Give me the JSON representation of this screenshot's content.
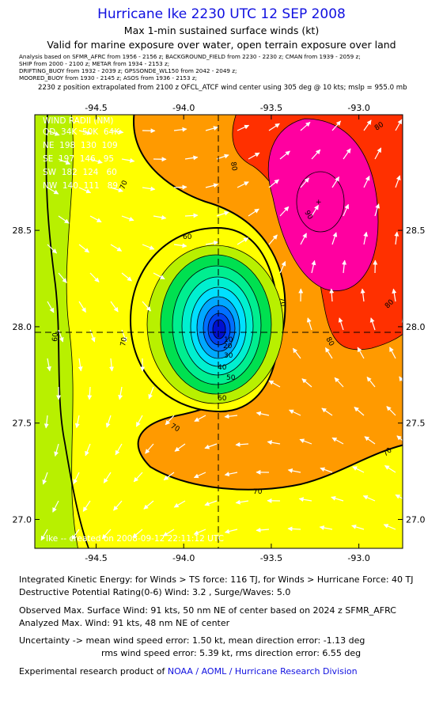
{
  "header": {
    "title": "Hurricane Ike 2230 UTC 12 SEP 2008",
    "subtitle1": "Max 1-min sustained surface winds (kt)",
    "subtitle2": "Valid for marine exposure over water, open terrain exposure over land",
    "meta_lines": [
      "Analysis based on  SFMR_AFRC from 1956 - 2156 z;  BACKGROUND_FIELD from 2230 - 2230 z;  CMAN from 1939 - 2059 z;",
      "SHIP from 2000 - 2100 z;   METAR from 1934 - 2153 z;",
      "DRIFTING_BUOY from 1932 - 2039 z;   GPSSONDE_WL150 from 2042 - 2049 z;",
      "MOORED_BUOY from 1930 - 2145 z;  ASOS from 1936 - 2153 z;"
    ],
    "position_note": "2230 z position extrapolated from 2100 z OFCL_ATCF wind center using 305 deg @ 10 kts; mslp = 955.0 mb"
  },
  "map": {
    "lon_range": [
      -94.85,
      -92.75
    ],
    "lat_range": [
      26.85,
      29.1
    ],
    "lon_ticks": [
      "-94.5",
      "-94.0",
      "-93.5",
      "-93.0"
    ],
    "lat_ticks": [
      "28.5",
      "28.0",
      "27.5",
      "27.0"
    ],
    "center": {
      "lon": -93.72,
      "lat": 27.85
    },
    "legend": {
      "title": "WIND RADII (NM)",
      "header": "QD  34K  50K  64K",
      "rows": [
        "NE  198  130  109",
        "SE  197  146   95",
        "SW  182  124   60",
        "NW  140  111   89"
      ]
    },
    "contour_labels": [
      "80",
      "80",
      "80",
      "80",
      "90",
      "70",
      "70",
      "70",
      "70",
      "70",
      "70",
      "60",
      "60",
      "60",
      "50",
      "40",
      "30",
      "20",
      "10"
    ],
    "credit": "Ike -- created on 2008-09-12 22:11:12 UTC",
    "colors": {
      "lt60": "#b8f000",
      "w60": "#ffff00",
      "w70": "#ff9a00",
      "w80": "#ff3000",
      "w90": "#ff00a0",
      "eye_green": "#00e050",
      "eye_cyan": "#00e0ff",
      "eye_blue": "#0010d0"
    }
  },
  "footer": {
    "ike": "Integrated Kinetic Energy:  for Winds > TS force: 116 TJ,  for Winds > Hurricane Force: 40 TJ",
    "dpr": "Destructive Potential Rating(0-6)   Wind: 3.2 , Surge/Waves: 5.0",
    "obs_max": "Observed Max. Surface Wind: 91 kts, 50 nm NE of center based on 2024 z SFMR_AFRC",
    "ana_max": "Analyzed Max. Wind: 91 kts, 48 nm NE of center",
    "unc1": "Uncertainty -> mean wind speed error: 1.50 kt,   mean direction error:  -1.13 deg",
    "unc2": "rms wind speed error: 5.39 kt,   rms direction error: 6.55 deg",
    "credit_prefix": "Experimental research product of ",
    "credit_org": "NOAA / AOML / Hurricane Research Division"
  }
}
